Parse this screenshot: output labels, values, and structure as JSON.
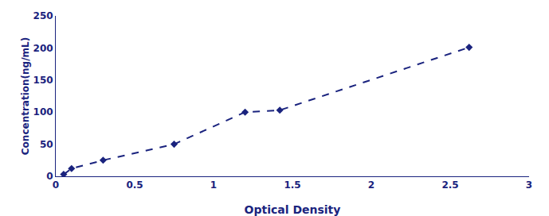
{
  "chart_data": {
    "type": "line",
    "x": [
      0.05,
      0.1,
      0.3,
      0.75,
      1.2,
      1.42,
      2.62
    ],
    "values": [
      3,
      12,
      25,
      50,
      100,
      103,
      201
    ],
    "color": "#1a237e",
    "marker": "diamond",
    "line_style": "dash",
    "xlabel": "Optical Density",
    "ylabel": "Concentration(ng/mL)",
    "xlim": [
      0,
      3
    ],
    "ylim": [
      0,
      250
    ],
    "xticks": [
      0,
      0.5,
      1,
      1.5,
      2,
      2.5,
      3
    ],
    "yticks": [
      0,
      50,
      100,
      150,
      200,
      250
    ],
    "grid": false
  }
}
